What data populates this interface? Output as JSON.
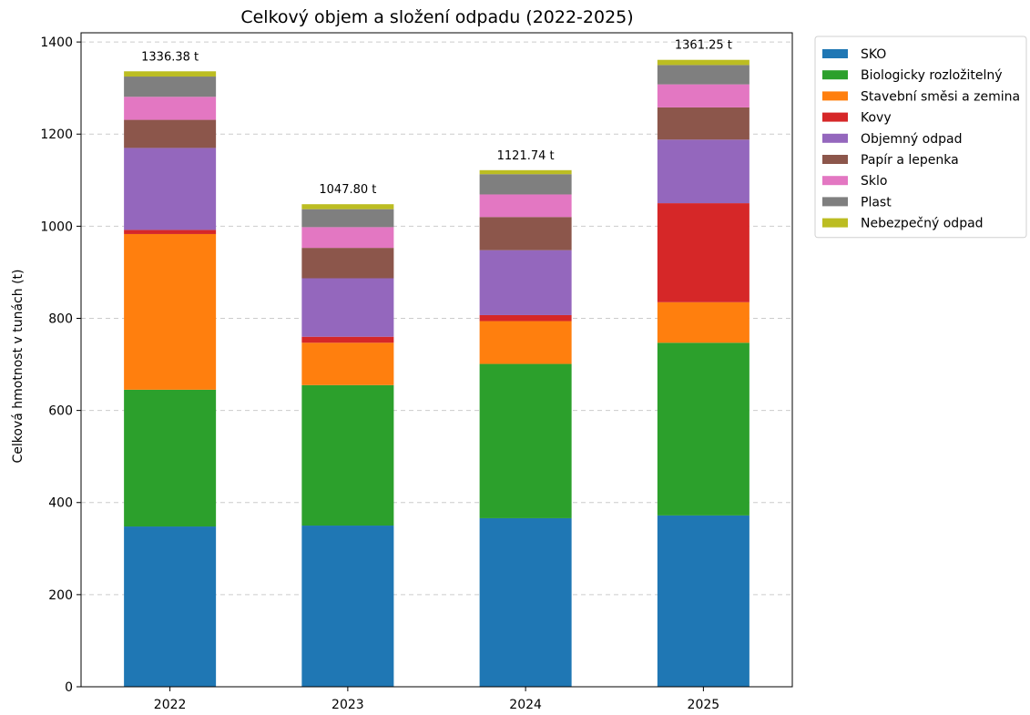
{
  "chart_data": {
    "type": "bar",
    "stacked": true,
    "title": "Celkový objem a složení odpadu (2022-2025)",
    "xlabel": "",
    "ylabel": "Celková hmotnost v tunách (t)",
    "ylim": [
      0,
      1420
    ],
    "yticks": [
      0,
      200,
      400,
      600,
      800,
      1000,
      1200,
      1400
    ],
    "grid": "y-dashed",
    "legend_position": "outside-top-right",
    "categories": [
      "2022",
      "2023",
      "2024",
      "2025"
    ],
    "series": [
      {
        "name": "SKO",
        "color": "#1f77b4",
        "values": [
          348,
          350,
          366,
          372
        ]
      },
      {
        "name": "Biologicky rozložitelný",
        "color": "#2ca02c",
        "values": [
          297,
          305,
          335,
          375
        ]
      },
      {
        "name": "Stavební směsi a zemina",
        "color": "#ff7f0e",
        "values": [
          338,
          92,
          93,
          88
        ]
      },
      {
        "name": "Kovy",
        "color": "#d62728",
        "values": [
          9,
          13,
          13,
          215
        ]
      },
      {
        "name": "Objemný odpad",
        "color": "#9467bd",
        "values": [
          178,
          127,
          141,
          138
        ]
      },
      {
        "name": "Papír a lepenka",
        "color": "#8c564b",
        "values": [
          61,
          66,
          72,
          70
        ]
      },
      {
        "name": "Sklo",
        "color": "#e377c2",
        "values": [
          50,
          45,
          49,
          50
        ]
      },
      {
        "name": "Plast",
        "color": "#7f7f7f",
        "values": [
          44,
          39,
          44,
          42
        ]
      },
      {
        "name": "Nebezpečný odpad",
        "color": "#bcbd22",
        "values": [
          11.38,
          10.8,
          8.74,
          11.25
        ]
      }
    ],
    "totals": [
      "1336.38 t",
      "1047.80 t",
      "1121.74 t",
      "1361.25 t"
    ]
  }
}
